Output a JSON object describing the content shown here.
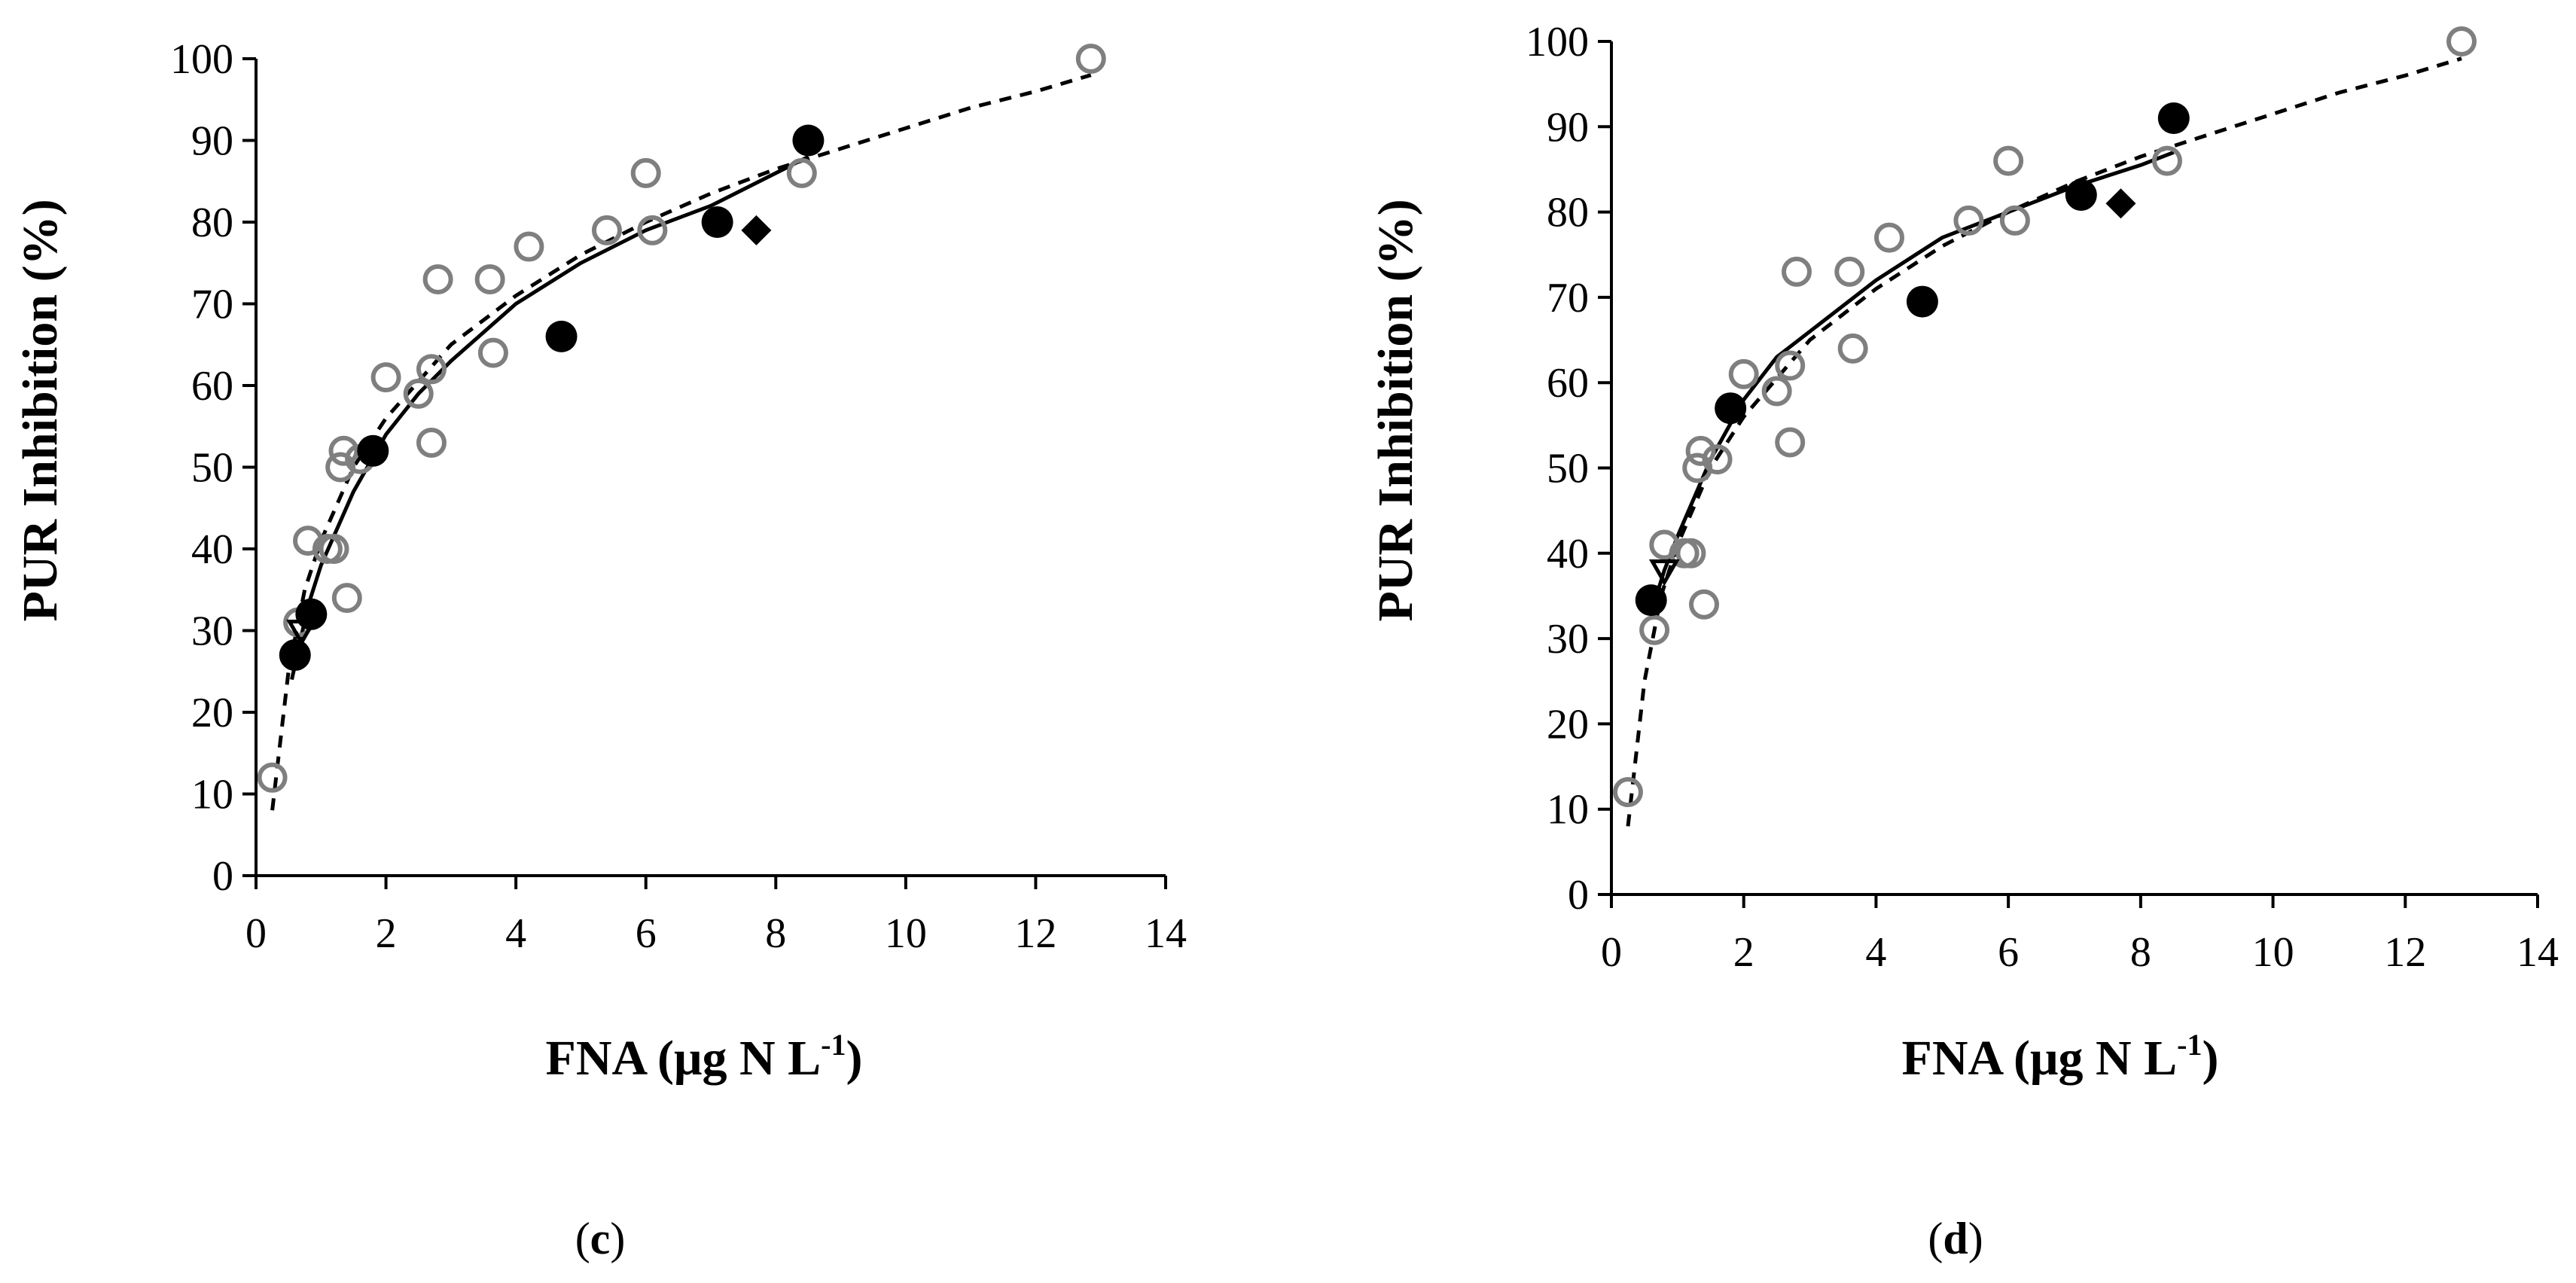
{
  "chart_data": [
    {
      "type": "scatter",
      "panel_label": "c",
      "xlabel": "FNA (μg N L",
      "xlabel_sup": "-1",
      "xlabel_close": ")",
      "ylabel": "PUR Inhibition (%)",
      "xlim": [
        0,
        14
      ],
      "ylim": [
        0,
        100
      ],
      "xticks": [
        "0",
        "2",
        "4",
        "6",
        "8",
        "10",
        "12",
        "14"
      ],
      "yticks": [
        "0",
        "10",
        "20",
        "30",
        "40",
        "50",
        "60",
        "70",
        "80",
        "90",
        "100"
      ],
      "series": [
        {
          "name": "open circles",
          "marker": "circle-open",
          "color": "#7f7f7f",
          "x": [
            0.25,
            0.65,
            0.8,
            1.1,
            1.2,
            1.3,
            1.35,
            1.4,
            1.6,
            2.0,
            2.5,
            2.7,
            2.7,
            2.8,
            3.6,
            3.65,
            4.2,
            5.4,
            6.0,
            6.1,
            8.4,
            12.85
          ],
          "y": [
            12,
            31,
            41,
            40,
            40,
            50,
            52,
            34,
            51,
            61,
            59,
            53,
            62,
            73,
            73,
            64,
            77,
            79,
            86,
            79,
            86,
            100
          ]
        },
        {
          "name": "filled circles",
          "marker": "circle-filled",
          "color": "#000000",
          "x": [
            0.6,
            0.85,
            1.8,
            4.7,
            7.1,
            8.5
          ],
          "y": [
            27,
            32,
            52,
            66,
            80,
            90
          ]
        },
        {
          "name": "diamonds",
          "marker": "diamond-filled",
          "color": "#000000",
          "x": [
            7.7
          ],
          "y": [
            79
          ]
        },
        {
          "name": "open triangles",
          "marker": "triangle-open",
          "color": "#000000",
          "x": [
            0.7
          ],
          "y": [
            30
          ]
        }
      ],
      "curves": [
        {
          "name": "solid fit",
          "style": "solid",
          "color": "#000000",
          "x": [
            0.55,
            0.8,
            1.0,
            1.5,
            2.0,
            2.5,
            3.0,
            4.0,
            5.0,
            6.0,
            7.0,
            8.0,
            8.5
          ],
          "y": [
            24,
            33,
            38,
            47,
            54,
            59,
            63,
            70,
            75,
            79,
            82,
            86,
            88
          ]
        },
        {
          "name": "dashed fit",
          "style": "dashed",
          "color": "#000000",
          "x": [
            0.25,
            0.5,
            0.75,
            1.0,
            1.5,
            2.0,
            3.0,
            4.0,
            5.0,
            6.0,
            7.0,
            8.0,
            9.0,
            10.0,
            11.0,
            12.0,
            12.85
          ],
          "y": [
            8,
            25,
            35,
            41,
            50,
            56,
            65,
            71,
            76,
            80,
            83.5,
            86.5,
            89,
            91.5,
            94,
            96,
            98
          ]
        }
      ]
    },
    {
      "type": "scatter",
      "panel_label": "d",
      "xlabel": "FNA (μg N L",
      "xlabel_sup": "-1",
      "xlabel_close": ")",
      "ylabel": "PUR Inhibition (%)",
      "xlim": [
        0,
        14
      ],
      "ylim": [
        0,
        100
      ],
      "xticks": [
        "0",
        "2",
        "4",
        "6",
        "8",
        "10",
        "12",
        "14"
      ],
      "yticks": [
        "0",
        "10",
        "20",
        "30",
        "40",
        "50",
        "60",
        "70",
        "80",
        "90",
        "100"
      ],
      "series": [
        {
          "name": "open circles",
          "marker": "circle-open",
          "color": "#7f7f7f",
          "x": [
            0.25,
            0.65,
            0.8,
            1.1,
            1.2,
            1.3,
            1.35,
            1.4,
            1.6,
            2.0,
            2.5,
            2.7,
            2.7,
            2.8,
            3.6,
            3.65,
            4.2,
            5.4,
            6.0,
            6.1,
            8.4,
            12.85
          ],
          "y": [
            12,
            31,
            41,
            40,
            40,
            50,
            52,
            34,
            51,
            61,
            59,
            53,
            62,
            73,
            73,
            64,
            77,
            79,
            86,
            79,
            86,
            100
          ]
        },
        {
          "name": "filled circles",
          "marker": "circle-filled",
          "color": "#000000",
          "x": [
            0.6,
            1.8,
            4.7,
            7.1,
            8.5
          ],
          "y": [
            34.5,
            57,
            69.5,
            82,
            91
          ]
        },
        {
          "name": "diamonds",
          "marker": "diamond-filled",
          "color": "#000000",
          "x": [
            7.7
          ],
          "y": [
            81
          ]
        },
        {
          "name": "open triangles",
          "marker": "triangle-open",
          "color": "#000000",
          "x": [
            0.8
          ],
          "y": [
            38
          ]
        }
      ],
      "curves": [
        {
          "name": "solid fit",
          "style": "solid",
          "color": "#000000",
          "x": [
            0.6,
            0.8,
            1.0,
            1.5,
            2.0,
            2.5,
            3.0,
            4.0,
            5.0,
            6.0,
            7.0,
            8.0,
            8.5
          ],
          "y": [
            33,
            38,
            42,
            51,
            58,
            63,
            66,
            72,
            77,
            80,
            83,
            85.5,
            87
          ]
        },
        {
          "name": "dashed fit",
          "style": "dashed",
          "color": "#000000",
          "x": [
            0.25,
            0.5,
            0.75,
            1.0,
            1.5,
            2.0,
            3.0,
            4.0,
            5.0,
            6.0,
            7.0,
            8.0,
            9.0,
            10.0,
            11.0,
            12.0,
            12.85
          ],
          "y": [
            8,
            25,
            35,
            41,
            50,
            56,
            65,
            71,
            76,
            80,
            83.5,
            86.5,
            89,
            91.5,
            94,
            96,
            98
          ]
        }
      ]
    }
  ]
}
